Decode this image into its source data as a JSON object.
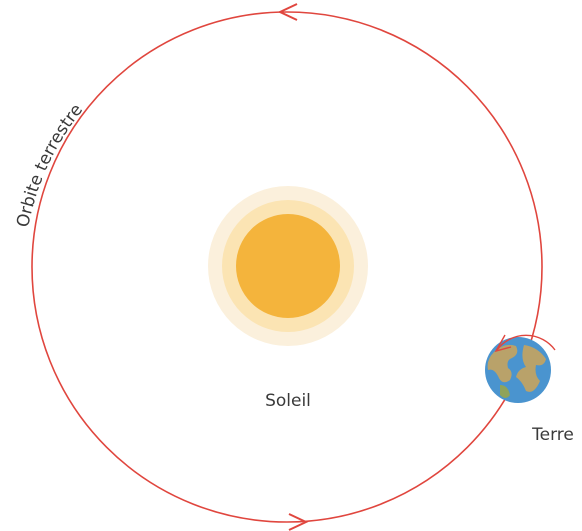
{
  "labels": {
    "orbit": "Orbite terrestre",
    "sun": "Soleil",
    "earth": "Terre"
  }
}
